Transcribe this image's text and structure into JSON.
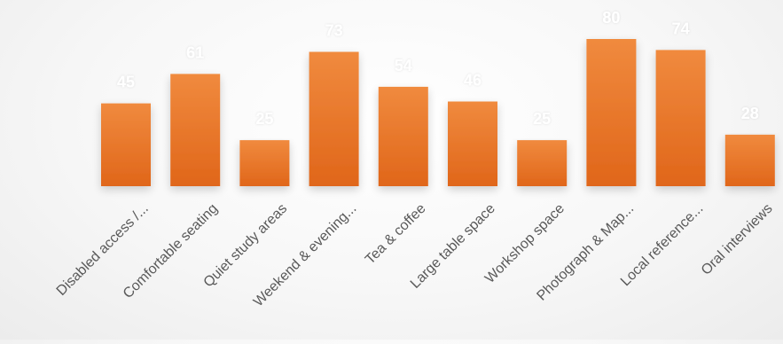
{
  "chart_data": {
    "type": "bar",
    "title": "",
    "xlabel": "",
    "ylabel": "",
    "categories": [
      "Disabled access /...",
      "Comfortable seating",
      "Quiet study areas",
      "Weekend & evening...",
      "Tea & coffee",
      "Large table space",
      "Workshop space",
      "Photograph & Map...",
      "Local reference...",
      "Oral interviews"
    ],
    "values": [
      45,
      61,
      25,
      73,
      54,
      46,
      25,
      80,
      74,
      28
    ],
    "ylim": [
      0,
      80
    ],
    "grid": false,
    "legend": "none",
    "colors": {
      "bar_top": "#F08A3E",
      "bar_bottom": "#E0661A",
      "data_label": "#FFFFFF",
      "tick_label": "#595959"
    }
  }
}
